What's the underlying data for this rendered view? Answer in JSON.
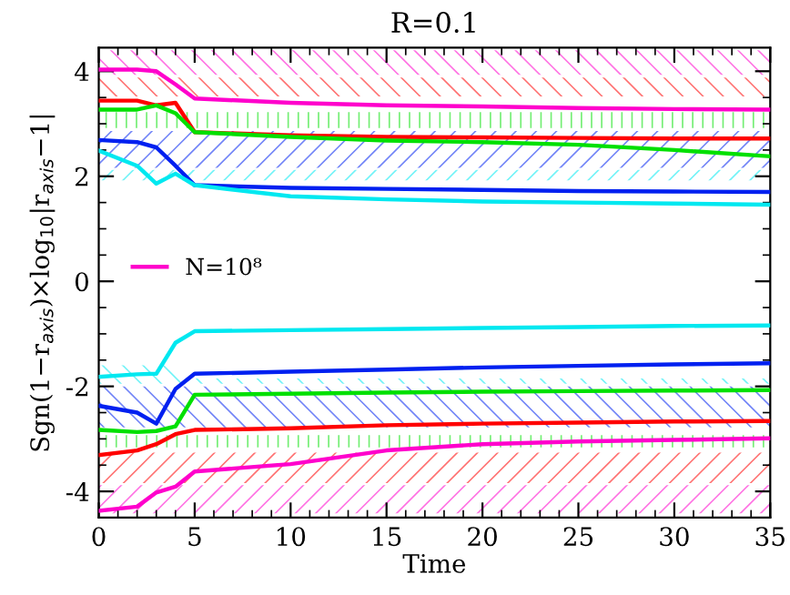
{
  "chart_data": {
    "type": "line",
    "title": "R=0.1",
    "xlabel": "Time",
    "ylabel": "Sgn(1−r$_{axis}$)×log$_{10}$|r$_{axis}$−1|",
    "x": [
      0,
      2,
      3,
      4,
      5,
      10,
      15,
      20,
      25,
      30,
      35
    ],
    "xlim": [
      0,
      35
    ],
    "xticks": [
      0,
      5,
      10,
      15,
      20,
      25,
      30,
      35
    ],
    "ylim": [
      -4.5,
      4.45
    ],
    "yticks": [
      -4,
      -2,
      0,
      2,
      4
    ],
    "grid": false,
    "legend": "left",
    "marker": "none",
    "line_style": "solid",
    "series": [
      {
        "name": "N=10⁸",
        "color": "#ff00cc",
        "values": [
          4.03,
          4.03,
          4.0,
          3.75,
          3.48,
          3.4,
          3.35,
          3.33,
          3.3,
          3.28,
          3.27
        ],
        "lower": [
          3.93,
          3.93,
          3.93,
          3.93,
          3.93,
          3.93,
          3.93,
          3.93,
          3.93,
          3.93,
          3.93
        ],
        "upper": [
          4.4,
          4.4,
          4.4,
          4.4,
          4.4,
          4.4,
          4.4,
          4.4,
          4.4,
          4.4,
          4.4
        ]
      },
      {
        "color": "#ff0000",
        "values": [
          3.44,
          3.44,
          3.35,
          3.4,
          2.84,
          2.78,
          2.75,
          2.74,
          2.73,
          2.72,
          2.72
        ],
        "lower": [
          3.52,
          3.52,
          3.52,
          3.52,
          3.52,
          3.52,
          3.52,
          3.52,
          3.52,
          3.52,
          3.52
        ],
        "upper": [
          3.88,
          3.88,
          3.88,
          3.88,
          3.88,
          3.88,
          3.88,
          3.88,
          3.88,
          3.88,
          3.88
        ]
      },
      {
        "color": "#00e000",
        "values": [
          3.27,
          3.27,
          3.35,
          3.2,
          2.84,
          2.75,
          2.68,
          2.65,
          2.6,
          2.5,
          2.38
        ],
        "lower": [
          2.92,
          2.92,
          2.92,
          2.92,
          2.92,
          2.92,
          2.92,
          2.92,
          2.92,
          2.92,
          2.92
        ],
        "upper": [
          3.22,
          3.22,
          3.22,
          3.22,
          3.22,
          3.22,
          3.22,
          3.22,
          3.22,
          3.22,
          3.22
        ]
      },
      {
        "color": "#0020f0",
        "values": [
          2.69,
          2.65,
          2.55,
          2.2,
          1.83,
          1.78,
          1.76,
          1.74,
          1.72,
          1.71,
          1.7
        ],
        "lower": [
          2.16,
          2.16,
          2.16,
          2.16,
          2.16,
          2.16,
          2.16,
          2.16,
          2.16,
          2.16,
          2.16
        ],
        "upper": [
          2.86,
          2.86,
          2.86,
          2.86,
          2.86,
          2.86,
          2.86,
          2.86,
          2.86,
          2.86,
          2.86
        ]
      },
      {
        "color": "#00e8f0",
        "values": [
          2.49,
          2.2,
          1.86,
          2.05,
          1.83,
          1.62,
          1.56,
          1.52,
          1.5,
          1.48,
          1.46
        ],
        "lower": [
          1.92,
          1.92,
          1.92,
          1.92,
          1.92,
          1.92,
          1.92,
          1.92,
          1.92,
          1.92,
          1.92
        ],
        "upper": [
          2.12,
          2.12,
          2.12,
          2.12,
          2.12,
          2.12,
          2.12,
          2.12,
          2.12,
          2.12,
          2.12
        ]
      },
      {
        "color": "#00e8f0",
        "values": [
          -1.82,
          -1.77,
          -1.76,
          -1.17,
          -0.95,
          -0.93,
          -0.91,
          -0.89,
          -0.87,
          -0.85,
          -0.84
        ],
        "lower": [
          -1.95,
          -1.95,
          -1.95,
          -1.95,
          -1.95,
          -1.95,
          -1.95,
          -1.95,
          -1.95,
          -1.95,
          -1.95
        ],
        "upper": [
          -1.6,
          -1.6,
          -1.6,
          -1.6,
          -1.85,
          -1.85,
          -1.85,
          -1.85,
          -1.85,
          -1.85,
          -1.85
        ]
      },
      {
        "color": "#0020f0",
        "values": [
          -2.37,
          -2.5,
          -2.71,
          -2.05,
          -1.76,
          -1.72,
          -1.68,
          -1.64,
          -1.61,
          -1.58,
          -1.56
        ],
        "lower": [
          -2.78,
          -2.78,
          -2.78,
          -2.78,
          -2.78,
          -2.78,
          -2.78,
          -2.78,
          -2.78,
          -2.78,
          -2.78
        ],
        "upper": [
          -2.0,
          -2.0,
          -2.0,
          -2.0,
          -2.0,
          -2.0,
          -2.0,
          -2.0,
          -2.0,
          -2.0,
          -2.0
        ]
      },
      {
        "color": "#00e000",
        "values": [
          -2.83,
          -2.87,
          -2.85,
          -2.76,
          -2.16,
          -2.14,
          -2.12,
          -2.1,
          -2.09,
          -2.08,
          -2.07
        ],
        "lower": [
          -3.16,
          -3.16,
          -3.16,
          -3.16,
          -3.16,
          -3.16,
          -3.16,
          -3.16,
          -3.16,
          -3.16,
          -3.16
        ],
        "upper": [
          -2.93,
          -2.93,
          -2.93,
          -2.93,
          -2.93,
          -2.93,
          -2.93,
          -2.93,
          -2.93,
          -2.93,
          -2.93
        ]
      },
      {
        "color": "#ff0000",
        "values": [
          -3.31,
          -3.22,
          -3.1,
          -2.91,
          -2.83,
          -2.8,
          -2.74,
          -2.71,
          -2.69,
          -2.67,
          -2.66
        ],
        "lower": [
          -3.84,
          -3.84,
          -3.84,
          -3.84,
          -3.84,
          -3.84,
          -3.84,
          -3.84,
          -3.84,
          -3.84,
          -3.84
        ],
        "upper": [
          -3.26,
          -3.26,
          -3.26,
          -3.26,
          -3.26,
          -3.26,
          -3.26,
          -3.26,
          -3.26,
          -3.26,
          -3.26
        ]
      },
      {
        "color": "#ff00cc",
        "values": [
          -4.37,
          -4.29,
          -4.02,
          -3.91,
          -3.62,
          -3.48,
          -3.22,
          -3.1,
          -3.05,
          -3.02,
          -2.99
        ],
        "lower": [
          -4.42,
          -4.42,
          -4.42,
          -4.42,
          -4.42,
          -4.42,
          -4.42,
          -4.42,
          -4.42,
          -4.42,
          -4.42
        ],
        "upper": [
          -3.88,
          -3.88,
          -3.88,
          -3.88,
          -3.88,
          -3.88,
          -3.88,
          -3.88,
          -3.88,
          -3.88,
          -3.88
        ]
      }
    ]
  }
}
